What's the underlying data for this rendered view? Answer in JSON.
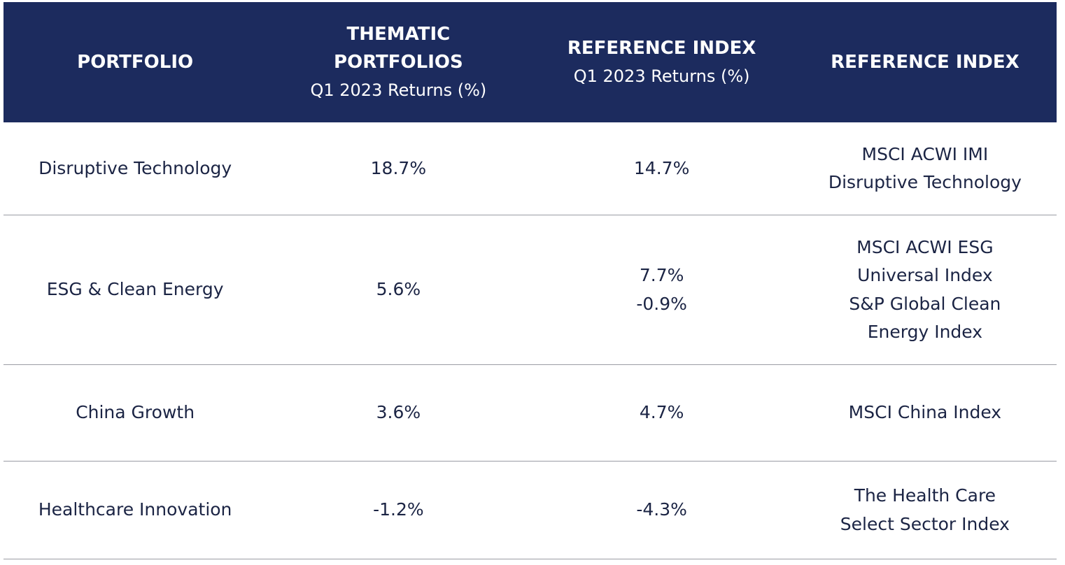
{
  "table": {
    "header": [
      {
        "title": [
          "PORTFOLIO"
        ]
      },
      {
        "title": [
          "THEMATIC",
          "PORTFOLIOS"
        ],
        "subtitle": "Q1 2023 Returns (%)"
      },
      {
        "title": [
          "REFERENCE INDEX"
        ],
        "subtitle": "Q1 2023 Returns (%)"
      },
      {
        "title": [
          "REFERENCE INDEX"
        ]
      }
    ],
    "rows": [
      [
        [
          "Disruptive Technology"
        ],
        [
          "18.7%"
        ],
        [
          "14.7%"
        ],
        [
          "MSCI ACWI IMI",
          "Disruptive Technology"
        ]
      ],
      [
        [
          "ESG & Clean Energy"
        ],
        [
          "5.6%"
        ],
        [
          "7.7%",
          "-0.9%"
        ],
        [
          "MSCI ACWI ESG",
          "Universal Index",
          "S&P Global Clean",
          "Energy Index"
        ]
      ],
      [
        [
          "China Growth"
        ],
        [
          "3.6%"
        ],
        [
          "4.7%"
        ],
        [
          "MSCI China Index"
        ]
      ],
      [
        [
          "Healthcare Innovation"
        ],
        [
          "-1.2%"
        ],
        [
          "-4.3%"
        ],
        [
          "The Health Care",
          "Select Sector Index"
        ]
      ]
    ]
  }
}
